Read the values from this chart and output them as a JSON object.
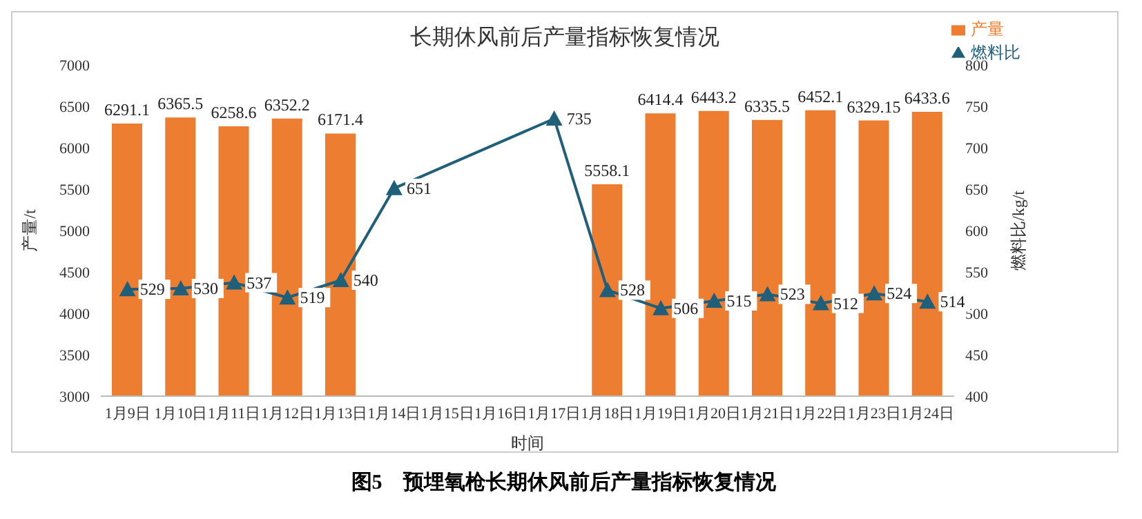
{
  "chart_data": {
    "type": "bar",
    "title": "长期休风前后产量指标恢复情况",
    "xlabel": "时间",
    "ylabel": "产量/t",
    "y2label": "燃料比/kg/t",
    "categories": [
      "1月9日",
      "1月10日",
      "1月11日",
      "1月12日",
      "1月13日",
      "1月14日",
      "1月15日",
      "1月16日",
      "1月17日",
      "1月18日",
      "1月19日",
      "1月20日",
      "1月21日",
      "1月22日",
      "1月23日",
      "1月24日"
    ],
    "series": [
      {
        "name": "产量",
        "color": "#ed7d31",
        "values": [
          6291.1,
          6365.5,
          6258.6,
          6352.2,
          6171.4,
          null,
          null,
          null,
          null,
          5558.1,
          6414.4,
          6443.2,
          6335.5,
          6452.1,
          6329.15,
          6433.6
        ]
      },
      {
        "name": "燃料比",
        "type": "line",
        "axis": "y2",
        "color": "#1f5f7a",
        "marker": "triangle",
        "values": [
          529,
          530,
          537,
          519,
          540,
          651,
          null,
          null,
          735,
          528,
          506,
          515,
          523,
          512,
          524,
          514
        ]
      }
    ],
    "ylim": [
      3000,
      7000
    ],
    "yticks": [
      3000,
      3500,
      4000,
      4500,
      5000,
      5500,
      6000,
      6500,
      7000
    ],
    "y2lim": [
      400,
      800
    ],
    "y2ticks": [
      400,
      450,
      500,
      550,
      600,
      650,
      700,
      750,
      800
    ],
    "data_labels": true,
    "legend": "top right",
    "annotations": [
      "图5　预埋氧枪长期休风前后产量指标恢复情况"
    ]
  }
}
